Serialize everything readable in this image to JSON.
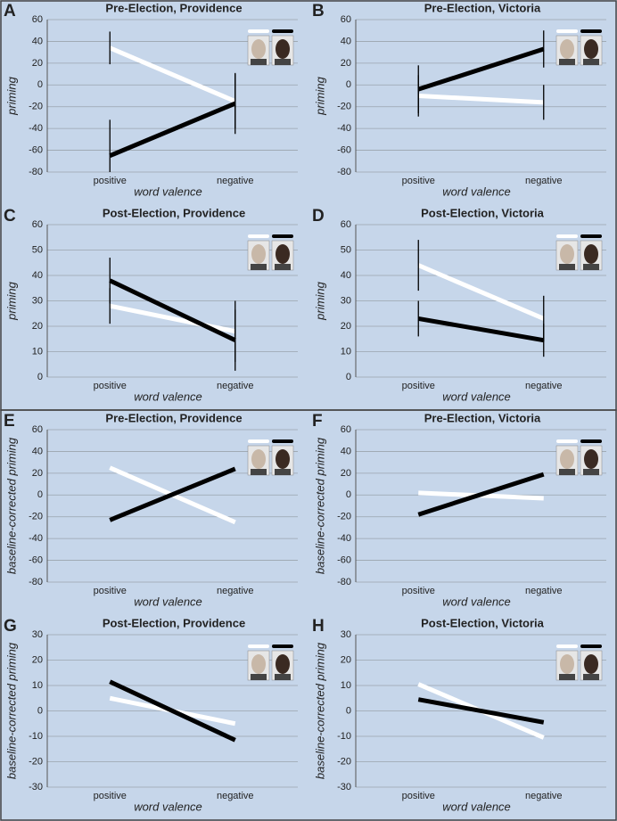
{
  "chart_data": [
    {
      "label": "A",
      "type": "line",
      "title": "Pre-Election, Providence",
      "ylabel": "priming",
      "xlabel": "word valence",
      "categories": [
        "positive",
        "negative"
      ],
      "ylim": [
        -80,
        60
      ],
      "yticks": [
        -80,
        -60,
        -40,
        -20,
        0,
        20,
        40,
        60
      ],
      "grid": true,
      "series": [
        {
          "color": "#ffffff",
          "values": [
            34,
            -15
          ],
          "errors": [
            15,
            25
          ]
        },
        {
          "color": "#000000",
          "values": [
            -65,
            -17
          ],
          "errors": [
            33,
            28
          ]
        }
      ]
    },
    {
      "label": "B",
      "type": "line",
      "title": "Pre-Election, Victoria",
      "ylabel": "priming",
      "xlabel": "word valence",
      "categories": [
        "positive",
        "negative"
      ],
      "ylim": [
        -80,
        60
      ],
      "yticks": [
        -80,
        -60,
        -40,
        -20,
        0,
        20,
        40,
        60
      ],
      "grid": true,
      "series": [
        {
          "color": "#ffffff",
          "values": [
            -10,
            -16
          ],
          "errors": [
            19,
            16
          ]
        },
        {
          "color": "#000000",
          "values": [
            -4,
            33
          ],
          "errors": [
            22,
            17
          ]
        }
      ]
    },
    {
      "label": "C",
      "type": "line",
      "title": "Post-Election, Providence",
      "ylabel": "priming",
      "xlabel": "word valence",
      "categories": [
        "positive",
        "negative"
      ],
      "ylim": [
        0,
        60
      ],
      "yticks": [
        0,
        10,
        20,
        30,
        40,
        50,
        60
      ],
      "grid": true,
      "series": [
        {
          "color": "#ffffff",
          "values": [
            28,
            18
          ],
          "errors": [
            7,
            12
          ]
        },
        {
          "color": "#000000",
          "values": [
            38,
            14.5
          ],
          "errors": [
            9,
            12
          ]
        }
      ]
    },
    {
      "label": "D",
      "type": "line",
      "title": "Post-Election, Victoria",
      "ylabel": "priming",
      "xlabel": "word valence",
      "categories": [
        "positive",
        "negative"
      ],
      "ylim": [
        0,
        60
      ],
      "yticks": [
        0,
        10,
        20,
        30,
        40,
        50,
        60
      ],
      "grid": true,
      "series": [
        {
          "color": "#ffffff",
          "values": [
            44,
            23
          ],
          "errors": [
            10,
            9
          ]
        },
        {
          "color": "#000000",
          "values": [
            23,
            14.5
          ],
          "errors": [
            7,
            6.5
          ]
        }
      ]
    },
    {
      "label": "E",
      "type": "line",
      "title": "Pre-Election, Providence",
      "ylabel": "baseline-corrected priming",
      "xlabel": "word valence",
      "categories": [
        "positive",
        "negative"
      ],
      "ylim": [
        -80,
        60
      ],
      "yticks": [
        -80,
        -60,
        -40,
        -20,
        0,
        20,
        40,
        60
      ],
      "grid": true,
      "series": [
        {
          "color": "#ffffff",
          "values": [
            25,
            -25
          ]
        },
        {
          "color": "#000000",
          "values": [
            -23,
            24
          ]
        }
      ]
    },
    {
      "label": "F",
      "type": "line",
      "title": "Pre-Election, Victoria",
      "ylabel": "baseline-corrected priming",
      "xlabel": "word valence",
      "categories": [
        "positive",
        "negative"
      ],
      "ylim": [
        -80,
        60
      ],
      "yticks": [
        -80,
        -60,
        -40,
        -20,
        0,
        20,
        40,
        60
      ],
      "grid": true,
      "series": [
        {
          "color": "#ffffff",
          "values": [
            2,
            -3
          ]
        },
        {
          "color": "#000000",
          "values": [
            -18,
            19
          ]
        }
      ]
    },
    {
      "label": "G",
      "type": "line",
      "title": "Post-Election, Providence",
      "ylabel": "baseline-corrected priming",
      "xlabel": "word valence",
      "categories": [
        "positive",
        "negative"
      ],
      "ylim": [
        -30,
        30
      ],
      "yticks": [
        -30,
        -20,
        -10,
        0,
        10,
        20,
        30
      ],
      "grid": true,
      "series": [
        {
          "color": "#ffffff",
          "values": [
            5,
            -5
          ]
        },
        {
          "color": "#000000",
          "values": [
            11.5,
            -11.5
          ]
        }
      ]
    },
    {
      "label": "H",
      "type": "line",
      "title": "Post-Election, Victoria",
      "ylabel": "baseline-corrected priming",
      "xlabel": "word valence",
      "categories": [
        "positive",
        "negative"
      ],
      "ylim": [
        -30,
        30
      ],
      "yticks": [
        -30,
        -20,
        -10,
        0,
        10,
        20,
        30
      ],
      "grid": true,
      "series": [
        {
          "color": "#ffffff",
          "values": [
            10.5,
            -10.5
          ]
        },
        {
          "color": "#000000",
          "values": [
            4.5,
            -4.5
          ]
        }
      ]
    }
  ]
}
